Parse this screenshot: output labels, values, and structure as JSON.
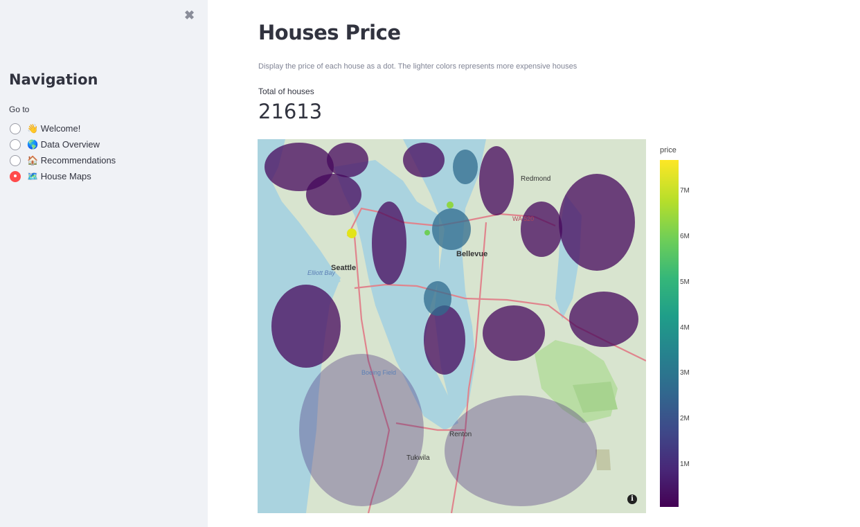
{
  "sidebar": {
    "close_symbol": "✖",
    "title": "Navigation",
    "radio_label": "Go to",
    "options": [
      {
        "label": "👋 Welcome!",
        "selected": false
      },
      {
        "label": "🌎 Data Overview",
        "selected": false
      },
      {
        "label": "🏠 Recommendations",
        "selected": false
      },
      {
        "label": "🗺️ House Maps",
        "selected": true
      }
    ]
  },
  "main": {
    "title": "Houses Price",
    "caption": "Display the price of each house as a dot. The lighter colors represents more expensive houses",
    "metric": {
      "label": "Total of houses",
      "value": "21613"
    }
  },
  "map": {
    "labels": [
      "Seattle",
      "Bellevue",
      "Renton",
      "Tukwila",
      "Redmond",
      "Boeing Field",
      "Elliott Bay",
      "WA 520"
    ],
    "info_icon": "i",
    "colorbar": {
      "title": "price",
      "ticks": [
        "7M",
        "6M",
        "5M",
        "4M",
        "3M",
        "2M",
        "1M"
      ],
      "colorscale": [
        "#440154",
        "#482878",
        "#3e4989",
        "#31688e",
        "#26828e",
        "#1f9e89",
        "#35b779",
        "#6ece58",
        "#b5de2b",
        "#fde725"
      ]
    }
  },
  "colors": {
    "accent": "#ff4b4b",
    "sidebar_bg": "#f0f2f6",
    "water": "#aad3df",
    "land": "#d6e5cc"
  }
}
